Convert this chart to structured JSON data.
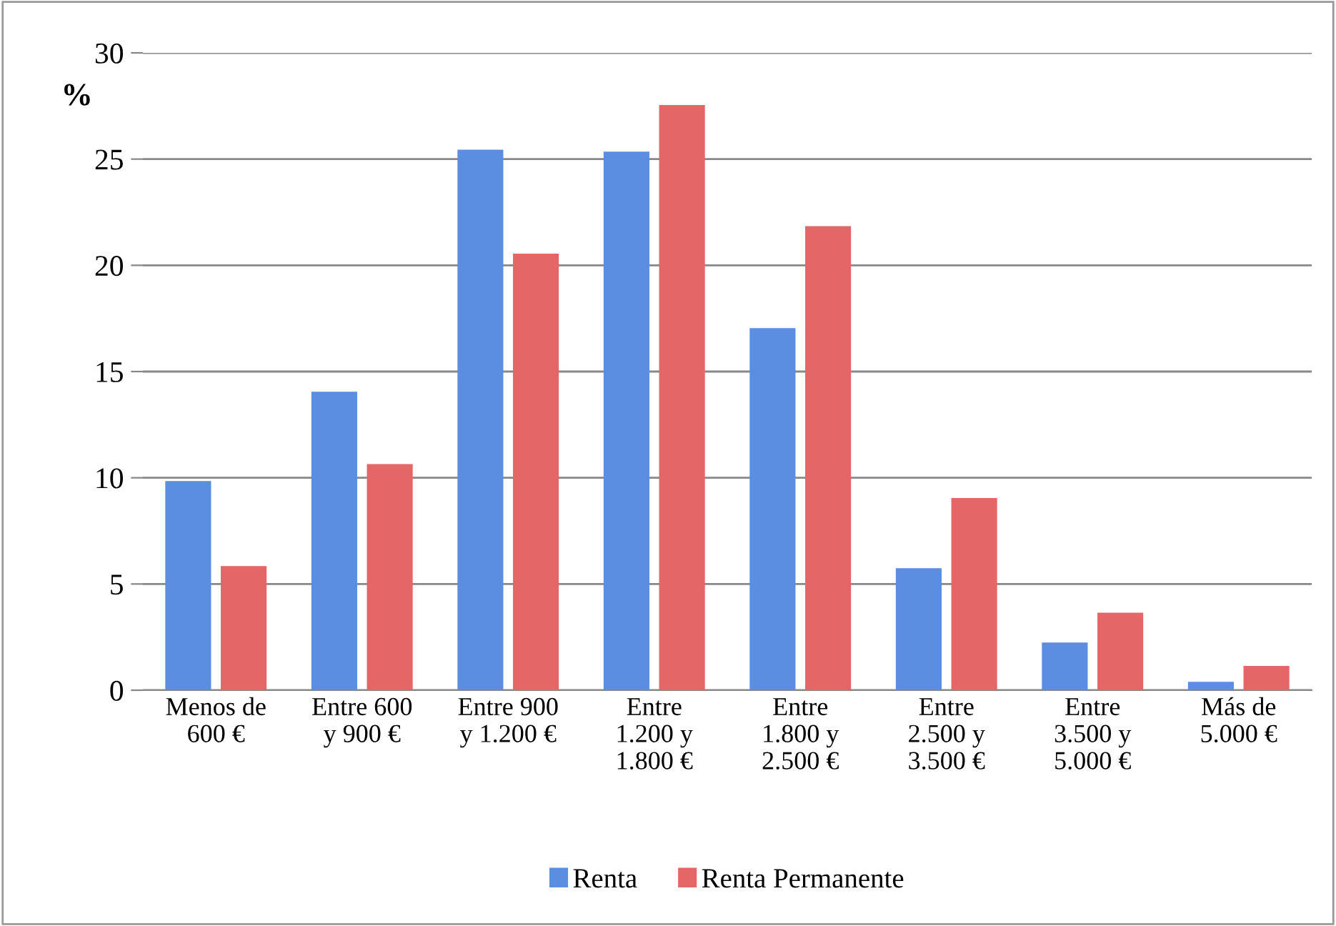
{
  "chart_data": {
    "type": "bar",
    "ylabel": "%",
    "categories": [
      "Menos de\n600 €",
      "Entre 600\ny 900 €",
      "Entre 900\ny 1.200 €",
      "Entre\n1.200 y\n1.800 €",
      "Entre\n1.800 y\n2.500 €",
      "Entre\n2.500 y\n3.500 €",
      "Entre\n3.500 y\n5.000 €",
      "Más de\n5.000 €"
    ],
    "series": [
      {
        "name": "Renta",
        "color": "#5b8ee0",
        "values": [
          9.8,
          14.0,
          25.4,
          25.3,
          17.0,
          5.7,
          2.2,
          0.35
        ]
      },
      {
        "name": "Renta Permanente",
        "color": "#e46666",
        "values": [
          5.8,
          10.6,
          20.5,
          27.5,
          21.8,
          9.0,
          3.6,
          1.1
        ]
      }
    ],
    "ylim": [
      0,
      30
    ],
    "yticks": [
      0,
      5,
      10,
      15,
      20,
      25,
      30
    ],
    "grid": "y",
    "legend": "bottom"
  }
}
